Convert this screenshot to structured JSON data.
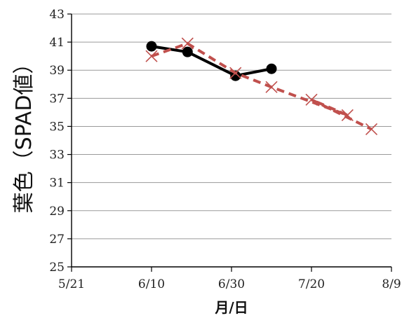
{
  "chart_data": {
    "type": "line",
    "xlabel": "月/日",
    "ylabel": "葉色（SPAD値）",
    "x_ticks": [
      "5/21",
      "6/10",
      "6/30",
      "7/20",
      "8/9"
    ],
    "y_ticks": [
      "25",
      "27",
      "29",
      "31",
      "33",
      "35",
      "37",
      "39",
      "41",
      "43"
    ],
    "ylim": [
      25,
      43
    ],
    "xlim": [
      "5/21",
      "8/9"
    ],
    "grid": "horizontal",
    "legend": "none",
    "series": [
      {
        "style": "solid-black-circle",
        "color": "#000000",
        "points": [
          {
            "x": "6/10",
            "y": 40.7
          },
          {
            "x": "6/19",
            "y": 40.3
          },
          {
            "x": "7/1",
            "y": 38.6
          },
          {
            "x": "7/10",
            "y": 39.1
          }
        ]
      },
      {
        "style": "dashed-red-cross",
        "color": "#c0504d",
        "points": [
          {
            "x": "6/10",
            "y": 40.0
          },
          {
            "x": "6/19",
            "y": 40.9
          },
          {
            "x": "7/1",
            "y": 38.8
          },
          {
            "x": "7/10",
            "y": 37.8
          },
          {
            "x": "7/29",
            "y": 35.8
          },
          {
            "x": "7/20",
            "y": 36.9
          },
          {
            "x": "8/4",
            "y": 34.8
          }
        ]
      }
    ]
  }
}
